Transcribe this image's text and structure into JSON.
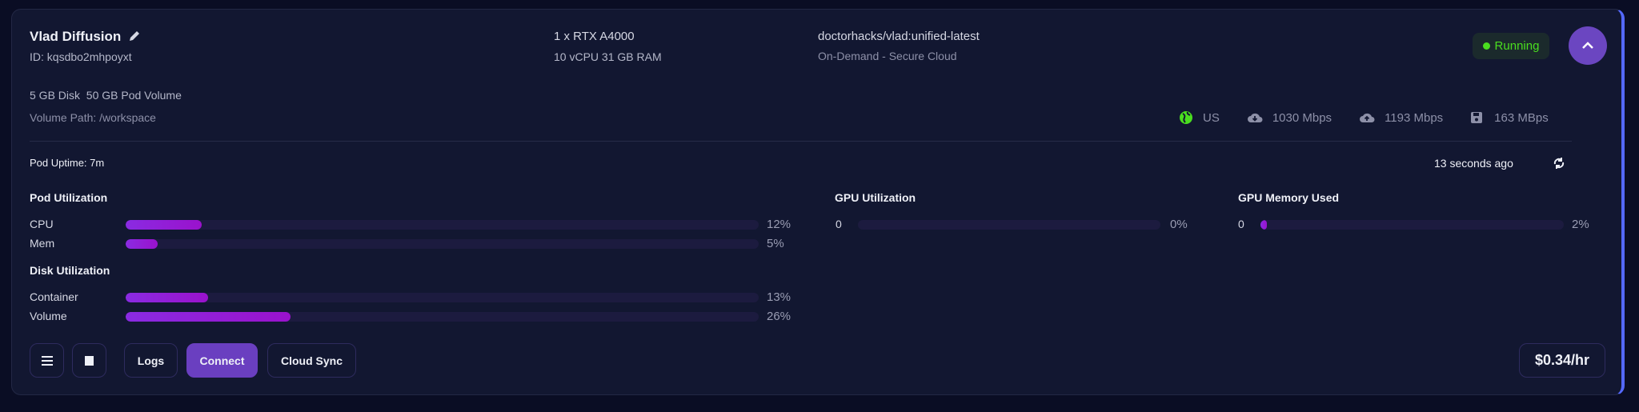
{
  "pod": {
    "name": "Vlad Diffusion",
    "id": "ID: kqsdbo2mhpoyxt",
    "gpu": "1 x RTX A4000",
    "specs": "10 vCPU 31 GB RAM",
    "image": "doctorhacks/vlad:unified-latest",
    "cloud": "On-Demand - Secure Cloud",
    "disk": "5 GB Disk",
    "volume": "50 GB Pod Volume",
    "volume_path": "Volume Path: /workspace",
    "status": "Running",
    "status_color": "#4ade1f"
  },
  "network": {
    "region": "US",
    "download": "1030 Mbps",
    "upload": "1193 Mbps",
    "disk_speed": "163 MBps"
  },
  "uptime": "Pod Uptime: 7m",
  "updated": "13 seconds ago",
  "pod_utilization": {
    "title": "Pod Utilization",
    "rows": [
      {
        "label": "CPU",
        "value": 12,
        "text": "12%"
      },
      {
        "label": "Mem",
        "value": 5,
        "text": "5%"
      }
    ]
  },
  "disk_utilization": {
    "title": "Disk Utilization",
    "rows": [
      {
        "label": "Container",
        "value": 13,
        "text": "13%"
      },
      {
        "label": "Volume",
        "value": 26,
        "text": "26%"
      }
    ]
  },
  "gpu_utilization": {
    "title": "GPU Utilization",
    "label": "0",
    "value": 0,
    "text": "0%"
  },
  "gpu_memory": {
    "title": "GPU Memory Used",
    "label": "0",
    "value": 2,
    "text": "2%"
  },
  "buttons": {
    "logs": "Logs",
    "connect": "Connect",
    "cloud_sync": "Cloud Sync"
  },
  "price": "$0.34/hr",
  "colors": {
    "accent": "#6a3fc0",
    "bar_fill": "#9a12cc",
    "track": "#1c1b3f",
    "border_accent": "#5468ff"
  }
}
